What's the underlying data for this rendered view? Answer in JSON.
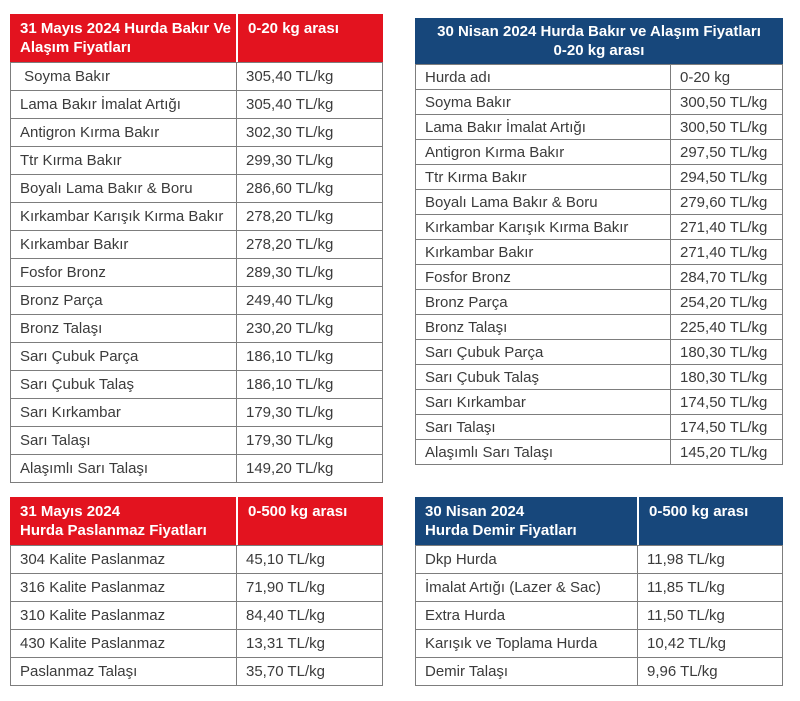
{
  "colors": {
    "red_header": "#E3131F",
    "navy_header": "#17477B",
    "cell_border": "#7D7D7D",
    "body_text": "#3B3B3B",
    "header_text": "#FFFFFF"
  },
  "tables": [
    {
      "id": "may-2024-copper-alloy",
      "theme": "red",
      "title_lines": [
        "31 Mayıs 2024 Hurda Bakır Ve",
        "Alaşım Fiyatları"
      ],
      "range_label": "0-20 kg arası",
      "rows": [
        {
          "name": " Soyma Bakır",
          "price": "305,40 TL/kg"
        },
        {
          "name": "Lama Bakır İmalat Artığı",
          "price": "305,40 TL/kg"
        },
        {
          "name": "Antigron Kırma Bakır",
          "price": "302,30 TL/kg"
        },
        {
          "name": "Ttr Kırma Bakır",
          "price": "299,30 TL/kg"
        },
        {
          "name": "Boyalı Lama Bakır & Boru",
          "price": "286,60 TL/kg"
        },
        {
          "name": "Kırkambar Karışık Kırma Bakır",
          "price": "278,20 TL/kg"
        },
        {
          "name": "Kırkambar Bakır",
          "price": "278,20 TL/kg"
        },
        {
          "name": "Fosfor Bronz",
          "price": "289,30 TL/kg"
        },
        {
          "name": "Bronz Parça",
          "price": "249,40 TL/kg"
        },
        {
          "name": "Bronz Talaşı",
          "price": "230,20 TL/kg"
        },
        {
          "name": "Sarı Çubuk Parça",
          "price": "186,10 TL/kg"
        },
        {
          "name": "Sarı Çubuk Talaş",
          "price": "186,10 TL/kg"
        },
        {
          "name": "Sarı Kırkambar",
          "price": "179,30 TL/kg"
        },
        {
          "name": "Sarı Talaşı",
          "price": "179,30 TL/kg"
        },
        {
          "name": "Alaşımlı Sarı Talaşı",
          "price": "149,20 TL/kg"
        }
      ]
    },
    {
      "id": "april-2024-copper-alloy",
      "theme": "navy",
      "merged_header": true,
      "title_lines": [
        "30 Nisan 2024 Hurda Bakır ve Alaşım Fiyatları",
        "0-20 kg arası"
      ],
      "rows": [
        {
          "name": "Hurda adı",
          "price": "0-20 kg",
          "header_row": true
        },
        {
          "name": "Soyma Bakır",
          "price": "300,50 TL/kg"
        },
        {
          "name": "Lama Bakır İmalat Artığı",
          "price": "300,50 TL/kg"
        },
        {
          "name": "Antigron Kırma Bakır",
          "price": "297,50 TL/kg"
        },
        {
          "name": "Ttr Kırma Bakır",
          "price": "294,50 TL/kg"
        },
        {
          "name": "Boyalı Lama Bakır & Boru",
          "price": "279,60 TL/kg"
        },
        {
          "name": "Kırkambar Karışık Kırma Bakır",
          "price": "271,40 TL/kg"
        },
        {
          "name": "Kırkambar Bakır",
          "price": "271,40 TL/kg"
        },
        {
          "name": "Fosfor Bronz",
          "price": "284,70 TL/kg"
        },
        {
          "name": "Bronz Parça",
          "price": "254,20 TL/kg"
        },
        {
          "name": "Bronz Talaşı",
          "price": "225,40 TL/kg"
        },
        {
          "name": "Sarı Çubuk Parça",
          "price": "180,30 TL/kg"
        },
        {
          "name": "Sarı Çubuk Talaş",
          "price": "180,30 TL/kg"
        },
        {
          "name": "Sarı Kırkambar",
          "price": "174,50 TL/kg"
        },
        {
          "name": "Sarı Talaşı",
          "price": "174,50 TL/kg"
        },
        {
          "name": "Alaşımlı Sarı Talaşı",
          "price": "145,20 TL/kg"
        }
      ]
    },
    {
      "id": "may-2024-stainless",
      "theme": "red",
      "title_lines": [
        "31 Mayıs 2024",
        "Hurda Paslanmaz Fiyatları"
      ],
      "range_label": "0-500 kg arası",
      "rows": [
        {
          "name": "304 Kalite Paslanmaz",
          "price": "45,10 TL/kg"
        },
        {
          "name": "316 Kalite Paslanmaz",
          "price": "71,90 TL/kg"
        },
        {
          "name": "310 Kalite Paslanmaz",
          "price": "84,40 TL/kg"
        },
        {
          "name": "430 Kalite Paslanmaz",
          "price": "13,31 TL/kg"
        },
        {
          "name": "Paslanmaz Talaşı",
          "price": "35,70 TL/kg"
        }
      ]
    },
    {
      "id": "april-2024-iron",
      "theme": "navy",
      "title_lines": [
        "30 Nisan 2024",
        "Hurda Demir Fiyatları"
      ],
      "range_label": "0-500 kg arası",
      "rows": [
        {
          "name": "Dkp Hurda",
          "price": "11,98 TL/kg"
        },
        {
          "name": "İmalat Artığı (Lazer & Sac)",
          "price": "11,85 TL/kg"
        },
        {
          "name": "Extra Hurda",
          "price": "11,50 TL/kg"
        },
        {
          "name": "Karışık ve Toplama Hurda",
          "price": "10,42 TL/kg"
        },
        {
          "name": "Demir Talaşı",
          "price": "9,96 TL/kg"
        }
      ]
    }
  ]
}
